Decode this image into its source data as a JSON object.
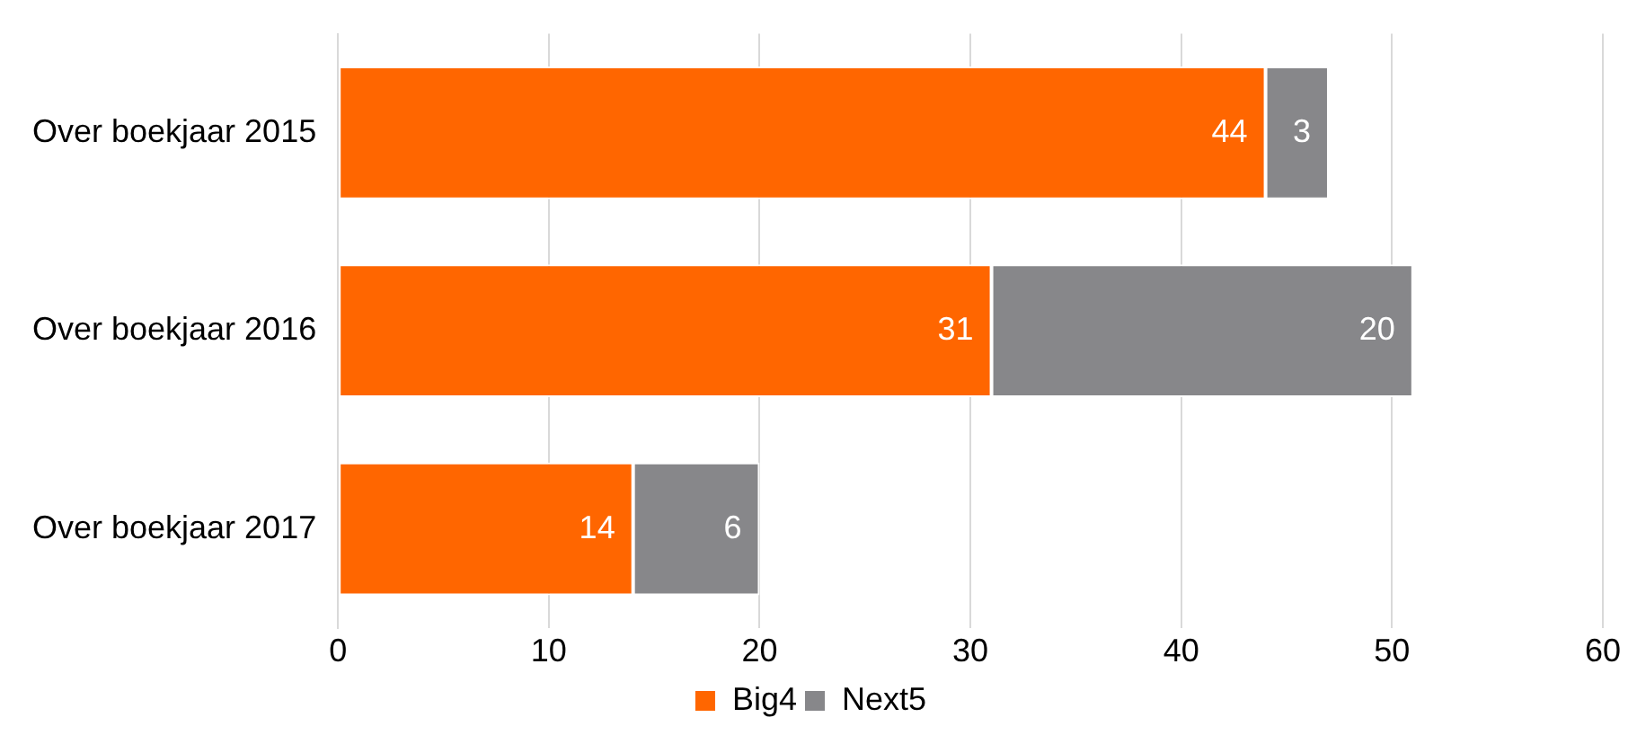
{
  "chart_data": {
    "type": "bar",
    "orientation": "horizontal",
    "stacked": true,
    "categories": [
      "Over boekjaar 2015",
      "Over boekjaar 2016",
      "Over boekjaar 2017"
    ],
    "series": [
      {
        "name": "Big4",
        "color": "#ff6600",
        "values": [
          44,
          31,
          14
        ]
      },
      {
        "name": "Next5",
        "color": "#87878a",
        "values": [
          3,
          20,
          6
        ]
      }
    ],
    "xlim": [
      0,
      60
    ],
    "xticks": [
      0,
      10,
      20,
      30,
      40,
      50,
      60
    ],
    "grid": "x",
    "legend": "bottom",
    "data_labels": true
  }
}
